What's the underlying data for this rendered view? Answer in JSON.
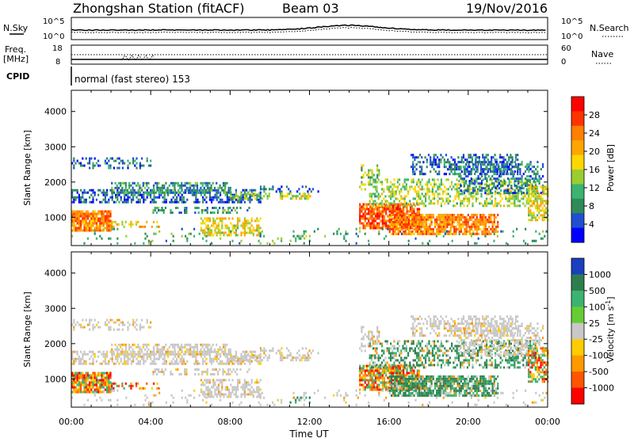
{
  "header": {
    "station": "Zhongshan Station (fitACF)",
    "beam": "Beam 03",
    "date": "19/Nov/2016"
  },
  "noise_panel": {
    "left_label": "N.Sky",
    "left_ticks": [
      "10^5",
      "10^0"
    ],
    "right_ticks": [
      "10^5",
      "10^0"
    ],
    "right_label": "N.Search"
  },
  "freq_panel": {
    "left_label_1": "Freq.",
    "left_label_2": "[MHz]",
    "left_ticks": [
      "18",
      "8"
    ],
    "right_ticks": [
      "60",
      "0"
    ],
    "right_label": "Nave"
  },
  "cpid_panel": {
    "label": "CPID",
    "text": "normal (fast stereo) 153"
  },
  "chart_data": [
    {
      "type": "heatmap",
      "name": "power",
      "ylabel": "Slant Range [km]",
      "xlabel": "",
      "ylim": [
        200,
        4600
      ],
      "xlim_hours": [
        0,
        24
      ],
      "y_ticks": [
        "1000",
        "2000",
        "3000",
        "4000"
      ],
      "colorbar": {
        "label": "Power [dB]",
        "ticks": [
          "4",
          "8",
          "12",
          "16",
          "20",
          "24",
          "28"
        ],
        "colors": [
          "#0000ff",
          "#1f4fd0",
          "#2e8b57",
          "#3cb371",
          "#9acd32",
          "#ffd700",
          "#ffa500",
          "#ff7f00",
          "#ff3300",
          "#ff0000"
        ]
      }
    },
    {
      "type": "heatmap",
      "name": "velocity",
      "ylabel": "Slant Range [km]",
      "xlabel": "Time UT",
      "ylim": [
        200,
        4600
      ],
      "xlim_hours": [
        0,
        24
      ],
      "y_ticks": [
        "1000",
        "2000",
        "3000",
        "4000"
      ],
      "x_ticks": [
        "00:00",
        "04:00",
        "08:00",
        "12:00",
        "16:00",
        "20:00",
        "00:00"
      ],
      "colorbar": {
        "label": "Velocity [m s",
        "label_sup": "-1",
        "label_end": "]",
        "ticks": [
          "1000",
          "500",
          "100",
          "25",
          "-25",
          "-100",
          "-500",
          "-1000"
        ],
        "colors": [
          "#1a3fbf",
          "#2e7d4f",
          "#3cb371",
          "#66cc33",
          "#c8c8c8",
          "#ffcc00",
          "#ff9900",
          "#ff5500",
          "#ff0000"
        ]
      }
    }
  ]
}
